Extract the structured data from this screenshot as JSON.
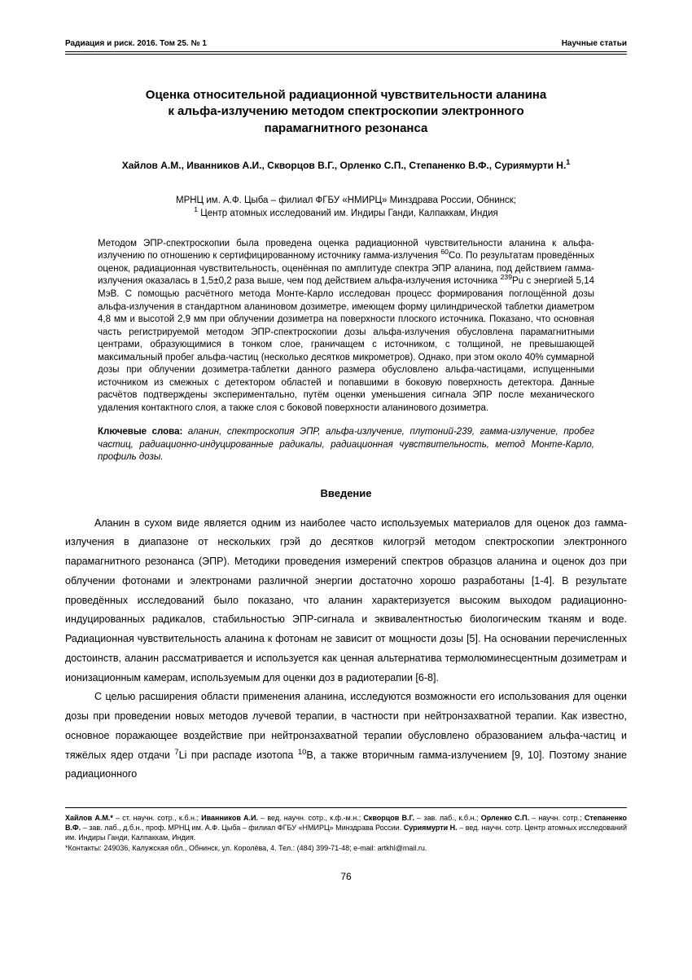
{
  "header": {
    "left": "Радиация и риск. 2016. Том 25. № 1",
    "right": "Научные статьи"
  },
  "title_lines": [
    "Оценка относительной радиационной чувствительности аланина",
    "к альфа-излучению методом спектроскопии электронного",
    "парамагнитного резонанса"
  ],
  "authors": "Хайлов А.М., Иванников А.И., Скворцов В.Г., Орленко С.П., Степаненко В.Ф., Суриямурти Н.",
  "authors_sup": "1",
  "affiliations": [
    "МРНЦ им. А.Ф. Цыба – филиал ФГБУ «НМИРЦ» Минздрава России, Обнинск;",
    "Центр атомных исследований им. Индиры Ганди, Калпаккам, Индия"
  ],
  "affiliation_sup": "1",
  "abstract_html": "Методом ЭПР-спектроскопии была проведена оценка радиационной чувствительности аланина к альфа-излучению по отношению к сертифицированному источнику гамма-излучения <sup>60</sup>Co. По результатам проведённых оценок, радиационная чувствительность, оценённая по амплитуде спектра ЭПР аланина, под действием гамма-излучения оказалась в 1,5±0,2 раза выше, чем под действием альфа-излучения источника <sup>239</sup>Pu с энергией 5,14 МэВ. С помощью расчётного метода Монте-Карло исследован процесс формирования поглощённой дозы альфа-излучения в стандартном аланиновом дозиметре, имеющем форму цилиндрической таблетки диаметром 4,8 мм и высотой 2,9 мм при облучении дозиметра на поверхности плоского источника. Показано, что основная часть регистрируемой методом ЭПР-спектроскопии дозы альфа-излучения обусловлена парамагнитными центрами, образующимися в тонком слое, граничащем с источником, с толщиной, не превышающей максимальный пробег альфа-частиц (несколько десятков микрометров). Однако, при этом около 40% суммарной дозы при облучении дозиметра-таблетки данного размера обусловлено альфа-частицами, испущенными источником из смежных с детектором областей и попавшими в боковую поверхность детектора. Данные расчётов подтверждены экспериментально, путём оценки уменьшения сигнала ЭПР после механического удаления контактного слоя, а также слоя с боковой поверхности аланинового дозиметра.",
  "keywords_label": "Ключевые слова:",
  "keywords_text": " аланин, спектроскопия ЭПР, альфа-излучение, плутоний-239, гамма-излучение, пробег частиц, радиационно-индуцированные радикалы, радиационная чувствительность, метод Монте-Карло, профиль дозы.",
  "section_heading": "Введение",
  "body_paragraphs_html": [
    "Аланин в сухом виде является одним из наиболее часто используемых материалов для оценок доз гамма-излучения в диапазоне от нескольких грэй до десятков килогрэй методом спектроскопии электронного парамагнитного резонанса (ЭПР). Методики проведения измерений спектров образцов аланина и оценок доз при облучении фотонами и электронами различной энергии достаточно хорошо разработаны [1-4]. В результате проведённых исследований было показано, что аланин характеризуется высоким выходом радиационно-индуцированных радикалов, стабильностью ЭПР-сигнала и эквивалентностью биологическим тканям и воде. Радиационная чувствительность аланина к фотонам не зависит от мощности дозы [5]. На основании перечисленных достоинств, аланин рассматривается и используется как ценная альтернатива термолюминесцентным дозиметрам и ионизационным камерам, используемым для оценки доз в радиотерапии [6-8].",
    "С целью расширения области применения аланина, исследуются возможности его использования для оценки дозы при проведении новых методов лучевой терапии, в частности при нейтронзахватной терапии. Как известно, основное поражающее воздействие при нейтронзахватной терапии обусловлено образованием альфа-частиц и тяжёлых ядер отдачи <sup>7</sup>Li при распаде изотопа <sup>10</sup>B, а также вторичным гамма-излучением [9, 10]. Поэтому знание радиационного"
  ],
  "footnote_html": "<b>Хайлов А.М.*</b> – ст. научн. сотр., к.б.н.; <b>Иванников А.И.</b> – вед. научн. сотр., к.ф.-м.н.; <b>Скворцов В.Г.</b> – зав. лаб., к.б.н.; <b>Орленко С.П.</b> – научн. сотр.; <b>Степаненко В.Ф.</b> – зав. лаб., д.б.н., проф. МРНЦ им. А.Ф. Цыба – филиал ФГБУ «НМИРЦ» Минздрава России. <b>Суриямурти Н.</b> – вед. научн. сотр. Центр атомных исследований им. Индиры Ганди, Калпаккам, Индия.<br>*Контакты: 249036, Калужская обл., Обнинск, ул. Королёва, 4. Тел.: (484) 399-71-48; e-mail: artkhl@mail.ru.",
  "page_number": "76",
  "colors": {
    "text": "#000000",
    "background": "#ffffff",
    "rule": "#000000"
  },
  "fonts": {
    "body_family": "Arial",
    "title_pt": 15,
    "authors_pt": 12,
    "abstract_pt": 11.5,
    "body_pt": 12.5,
    "footnote_pt": 9
  }
}
